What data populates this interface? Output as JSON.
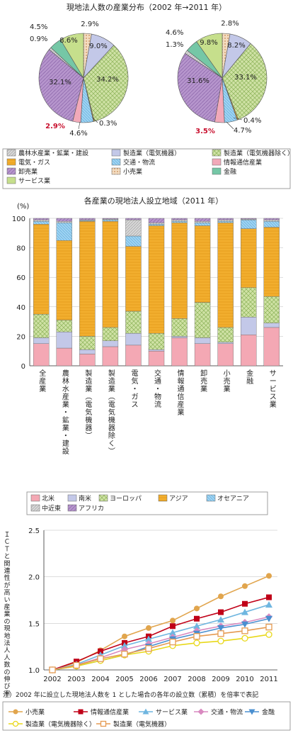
{
  "pie_title": "現地法人数の産業分布（2002 年→2011 年）",
  "bar_title": "各産業の現地法人設立地域（2011 年）",
  "bar_unit": "(%)",
  "line_ylabel": "ＩＣＴと関連性が高い産業の現地法人人数の伸び率",
  "line_note": "注）2002 年に設立した現地法人数を 1 とした場合の各年の設立数（累積）を倍率で表記",
  "industry_legend": [
    {
      "label": "農林水産業・鉱業・建設",
      "color": "#d7d7d7"
    },
    {
      "label": "製造業（電気機器）",
      "color": "#c3c8e8"
    },
    {
      "label": "製造業（電気機器除く）",
      "color": "#cfe2a5"
    },
    {
      "label": "電気・ガス",
      "color": "#f2ae2e"
    },
    {
      "label": "交通・物流",
      "color": "#9ed3f2"
    },
    {
      "label": "情報通信産業",
      "color": "#f2a9b9"
    },
    {
      "label": "卸売業",
      "color": "#b695cc"
    },
    {
      "label": "小売業",
      "color": "#f3dcc0"
    },
    {
      "label": "金融",
      "color": "#75c7a6"
    },
    {
      "label": "サービス業",
      "color": "#c6df8c"
    }
  ],
  "region_legend": [
    {
      "label": "北米",
      "color": "#f4a8b4"
    },
    {
      "label": "南米",
      "color": "#c3c8e8"
    },
    {
      "label": "ヨーロッパ",
      "color": "#cfe2a5"
    },
    {
      "label": "アジア",
      "color": "#f2ae2e"
    },
    {
      "label": "オセアニア",
      "color": "#9ed3f2"
    },
    {
      "label": "中近東",
      "color": "#d7d7d7"
    },
    {
      "label": "アフリカ",
      "color": "#b695cc"
    }
  ],
  "chart_data": [
    {
      "type": "pie",
      "title": "現地法人数の産業分布（2002 年→2011 年）",
      "subtitle": "2002",
      "categories": [
        "小売業",
        "製造業（電気機器）",
        "製造業（電気機器除く）",
        "電気・ガス",
        "交通・物流",
        "情報通信産業",
        "卸売業",
        "農林水産業・鉱業・建設",
        "金融",
        "サービス業"
      ],
      "values": [
        2.9,
        9.0,
        34.2,
        0.3,
        4.6,
        2.9,
        32.1,
        0.9,
        4.5,
        8.6
      ],
      "labels": [
        "2.9%",
        "9.0%",
        "34.2%",
        "0.3%",
        "4.6%",
        "2.9%",
        "32.1%",
        "0.9%",
        "4.5%",
        "8.6%"
      ]
    },
    {
      "type": "pie",
      "subtitle": "2011",
      "categories": [
        "小売業",
        "製造業（電気機器）",
        "製造業（電気機器除く）",
        "電気・ガス",
        "交通・物流",
        "情報通信産業",
        "卸売業",
        "農林水産業・鉱業・建設",
        "金融",
        "サービス業"
      ],
      "values": [
        2.8,
        8.2,
        33.1,
        0.4,
        4.7,
        3.5,
        31.6,
        1.3,
        4.6,
        9.8
      ],
      "labels": [
        "2.8%",
        "8.2%",
        "33.1%",
        "0.4%",
        "4.7%",
        "3.5%",
        "31.6%",
        "1.3%",
        "4.6%",
        "9.8%"
      ]
    },
    {
      "type": "bar",
      "stacked": true,
      "title": "各産業の現地法人設立地域（2011 年）",
      "ylabel": "(%)",
      "ylim": [
        0,
        100
      ],
      "yticks": [
        0,
        20,
        40,
        60,
        80,
        100
      ],
      "categories": [
        "全産業",
        "農林水産業・鉱業・建設",
        "製造業（電気機器）",
        "製造業（電気機器除く）",
        "電気・ガス",
        "交通・物流",
        "情報通信産業",
        "卸売業",
        "小売業",
        "金融",
        "サービス業"
      ],
      "series": [
        {
          "name": "北米",
          "values": [
            15,
            12,
            8,
            13,
            14,
            10,
            19,
            15,
            15,
            21,
            26
          ]
        },
        {
          "name": "南米",
          "values": [
            4,
            11,
            3,
            4,
            8,
            1,
            1,
            4,
            1,
            12,
            3
          ]
        },
        {
          "name": "ヨーロッパ",
          "values": [
            16,
            8,
            9,
            9,
            15,
            11,
            12,
            24,
            10,
            20,
            18
          ]
        },
        {
          "name": "アジア",
          "values": [
            61,
            54,
            78,
            72,
            44,
            73,
            65,
            52,
            71,
            40,
            47
          ]
        },
        {
          "name": "オセアニア",
          "values": [
            2,
            12,
            0.5,
            1,
            7,
            1,
            1,
            2,
            1,
            6,
            4
          ]
        },
        {
          "name": "中近東",
          "values": [
            1,
            1,
            0.5,
            0.5,
            11,
            1,
            1,
            1,
            1,
            0.5,
            1
          ]
        },
        {
          "name": "アフリカ",
          "values": [
            1,
            2,
            1,
            0.5,
            1,
            3,
            1,
            2,
            1,
            0.5,
            1
          ]
        }
      ]
    },
    {
      "type": "line",
      "ylabel": "ＩＣＴと関連性が高い産業の現地法人人数の伸び率",
      "ylim": [
        1.0,
        2.5
      ],
      "yticks": [
        1.0,
        1.5,
        2.0,
        2.5
      ],
      "x": [
        2002,
        2003,
        2004,
        2005,
        2006,
        2007,
        2008,
        2009,
        2010,
        2011
      ],
      "series": [
        {
          "name": "小売業",
          "color": "#e1a54d",
          "marker": "circle",
          "values": [
            1.0,
            1.08,
            1.21,
            1.36,
            1.45,
            1.53,
            1.66,
            1.79,
            1.9,
            2.01
          ]
        },
        {
          "name": "情報通信産業",
          "color": "#c00018",
          "marker": "square",
          "values": [
            1.0,
            1.09,
            1.2,
            1.29,
            1.36,
            1.47,
            1.55,
            1.62,
            1.71,
            1.78
          ]
        },
        {
          "name": "サービス業",
          "color": "#6fb6e0",
          "marker": "triangle",
          "values": [
            1.0,
            1.06,
            1.16,
            1.26,
            1.33,
            1.4,
            1.47,
            1.54,
            1.62,
            1.7
          ]
        },
        {
          "name": "交通・物流",
          "color": "#d98ac0",
          "marker": "diamond",
          "values": [
            1.0,
            1.05,
            1.13,
            1.22,
            1.28,
            1.35,
            1.42,
            1.47,
            1.51,
            1.57
          ]
        },
        {
          "name": "金融",
          "color": "#4a8fd0",
          "marker": "tridown",
          "values": [
            1.0,
            1.04,
            1.1,
            1.16,
            1.25,
            1.33,
            1.39,
            1.45,
            1.49,
            1.55
          ]
        },
        {
          "name": "製造業（電気機器除く）",
          "color": "#e8d81a",
          "marker": "circle-open",
          "values": [
            1.0,
            1.04,
            1.1,
            1.16,
            1.2,
            1.26,
            1.29,
            1.31,
            1.34,
            1.38
          ]
        },
        {
          "name": "製造業（電気機器）",
          "color": "#e59a52",
          "marker": "square-open",
          "values": [
            1.0,
            1.05,
            1.12,
            1.17,
            1.23,
            1.3,
            1.36,
            1.39,
            1.42,
            1.46
          ]
        }
      ]
    }
  ]
}
